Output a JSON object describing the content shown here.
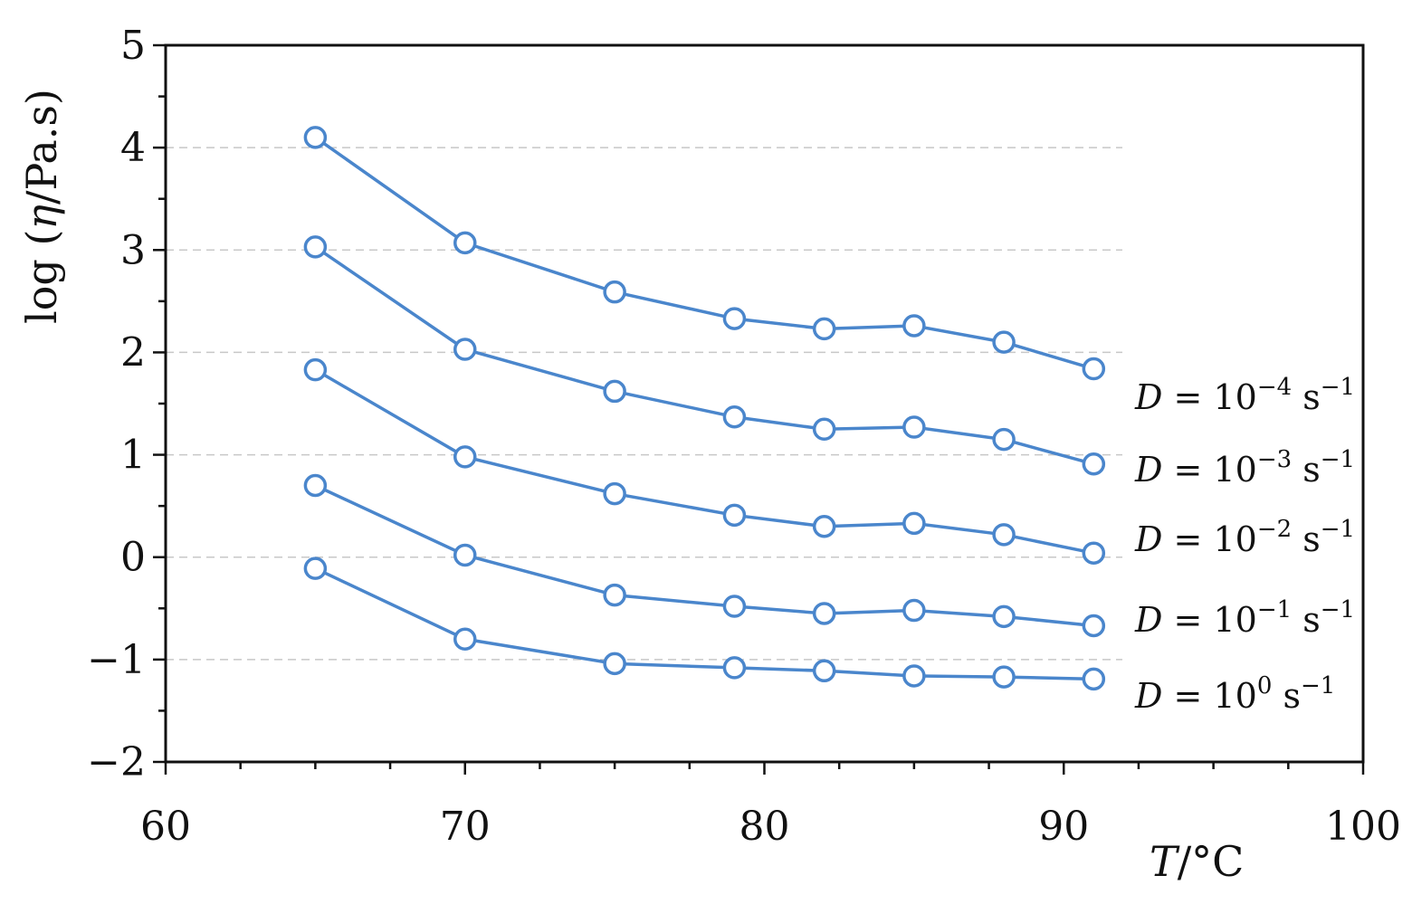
{
  "chart_data": {
    "type": "line",
    "xlabel": {
      "var": "T",
      "rest": "/°C"
    },
    "ylabel": {
      "prefix": "log (",
      "var": "η",
      "rest": "/Pa.s)"
    },
    "xlim": [
      60,
      100
    ],
    "ylim": [
      -2,
      5
    ],
    "xticks": [
      "60",
      "70",
      "80",
      "90",
      "100"
    ],
    "yticks": [
      "−2",
      "−1",
      "0",
      "1",
      "2",
      "3",
      "4",
      "5"
    ],
    "grid": "horizontal dashed at major y ticks",
    "x": [
      65,
      70,
      75,
      79,
      82,
      85,
      88,
      91
    ],
    "color": "#4a86cc",
    "marker": "open circle",
    "series": [
      {
        "label": {
          "var": "D",
          "eq": " = 10",
          "exp": "−4",
          "unit": " s",
          "unitexp": "−1"
        },
        "values": [
          4.1,
          3.07,
          2.59,
          2.33,
          2.23,
          2.26,
          2.1,
          1.84
        ]
      },
      {
        "label": {
          "var": "D",
          "eq": " = 10",
          "exp": "−3",
          "unit": " s",
          "unitexp": "−1"
        },
        "values": [
          3.03,
          2.03,
          1.62,
          1.37,
          1.25,
          1.27,
          1.15,
          0.91
        ]
      },
      {
        "label": {
          "var": "D",
          "eq": " = 10",
          "exp": "−2",
          "unit": " s",
          "unitexp": "−1"
        },
        "values": [
          1.83,
          0.98,
          0.62,
          0.41,
          0.3,
          0.33,
          0.22,
          0.04
        ]
      },
      {
        "label": {
          "var": "D",
          "eq": " = 10",
          "exp": "−1",
          "unit": " s",
          "unitexp": "−1"
        },
        "values": [
          0.7,
          0.02,
          -0.37,
          -0.48,
          -0.55,
          -0.52,
          -0.58,
          -0.67
        ]
      },
      {
        "label": {
          "var": "D",
          "eq": " = 10",
          "exp": "0",
          "unit": " s",
          "unitexp": "−1"
        },
        "values": [
          -0.11,
          -0.8,
          -1.04,
          -1.08,
          -1.11,
          -1.16,
          -1.17,
          -1.19
        ]
      }
    ]
  }
}
